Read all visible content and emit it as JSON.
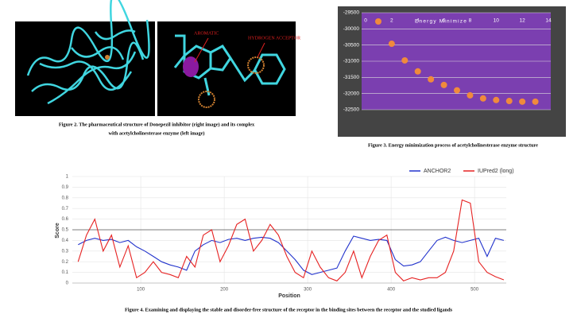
{
  "figures": [
    {
      "caption_lines": [
        "Figure 2. The pharmaceutical structure of Donepezil inhibitor (right image) and its complex",
        "with acetylcholinesterase enzyme (left image)"
      ],
      "labels": [
        "AROMATIC",
        "HYDROGEN ACCEPTOR"
      ]
    },
    {
      "caption": "Figure 3. Energy minimization process of acetylcholinesterase enzyme structure",
      "chart_data": {
        "type": "scatter",
        "series": [
          {
            "name": "Energy Minimize",
            "color": "#f08a3c",
            "x": [
              2,
              3,
              4,
              5,
              6,
              7,
              8,
              9,
              10,
              11,
              12,
              13
            ],
            "values": [
              -30460,
              -30975,
              -31315,
              -31560,
              -31735,
              -31900,
              -32055,
              -32150,
              -32200,
              -32230,
              -32250,
              -32250
            ]
          }
        ],
        "xlim": [
          0,
          14
        ],
        "xticks": [
          0,
          2,
          4,
          6,
          8,
          10,
          12,
          14
        ],
        "ylim": [
          -32500,
          -29500
        ],
        "yticks": [
          -29500,
          -30000,
          -30500,
          -31000,
          -31500,
          -32000,
          -32500
        ],
        "grid": true,
        "background": "#7b3fb0"
      }
    },
    {
      "caption": "Figure 4. Examining and displaying the stable and disorder-free structure of the receptor in the binding sites between the receptor and the studied ligands",
      "chart_data": {
        "type": "line",
        "x_label": "Position",
        "y_label": "Score",
        "x": [
          25,
          35,
          45,
          55,
          65,
          75,
          85,
          95,
          105,
          115,
          125,
          135,
          145,
          155,
          165,
          175,
          185,
          195,
          205,
          215,
          225,
          235,
          245,
          255,
          265,
          275,
          285,
          295,
          305,
          315,
          325,
          335,
          345,
          355,
          365,
          375,
          385,
          395,
          405,
          415,
          425,
          435,
          445,
          455,
          465,
          475,
          485,
          495,
          505,
          515,
          525,
          535
        ],
        "series": [
          {
            "name": "ANCHOR2",
            "color": "#2233cc",
            "values": [
              0.36,
              0.4,
              0.42,
              0.4,
              0.41,
              0.38,
              0.4,
              0.34,
              0.3,
              0.25,
              0.2,
              0.17,
              0.15,
              0.12,
              0.3,
              0.36,
              0.4,
              0.38,
              0.41,
              0.42,
              0.4,
              0.42,
              0.43,
              0.42,
              0.38,
              0.3,
              0.22,
              0.12,
              0.08,
              0.1,
              0.12,
              0.14,
              0.3,
              0.44,
              0.42,
              0.4,
              0.41,
              0.4,
              0.22,
              0.16,
              0.17,
              0.2,
              0.3,
              0.4,
              0.43,
              0.4,
              0.38,
              0.4,
              0.42,
              0.25,
              0.42,
              0.4
            ]
          },
          {
            "name": "IUPred2 (long)",
            "color": "#e62222",
            "values": [
              0.2,
              0.45,
              0.6,
              0.3,
              0.45,
              0.15,
              0.35,
              0.05,
              0.1,
              0.2,
              0.1,
              0.08,
              0.05,
              0.25,
              0.15,
              0.45,
              0.5,
              0.2,
              0.35,
              0.55,
              0.6,
              0.3,
              0.4,
              0.55,
              0.45,
              0.25,
              0.1,
              0.05,
              0.3,
              0.15,
              0.05,
              0.02,
              0.1,
              0.3,
              0.05,
              0.25,
              0.4,
              0.45,
              0.1,
              0.02,
              0.05,
              0.03,
              0.05,
              0.05,
              0.1,
              0.3,
              0.78,
              0.75,
              0.2,
              0.1,
              0.06,
              0.03
            ]
          }
        ],
        "xlim": [
          18,
          538
        ],
        "xticks": [
          100,
          200,
          300,
          400,
          500
        ],
        "ylim": [
          0,
          1
        ],
        "yticks": [
          0,
          0.1,
          0.2,
          0.3,
          0.4,
          0.5,
          0.6,
          0.7,
          0.8,
          0.9,
          1
        ],
        "threshold": 0.5,
        "grid": true,
        "legend": "top-right"
      }
    }
  ]
}
